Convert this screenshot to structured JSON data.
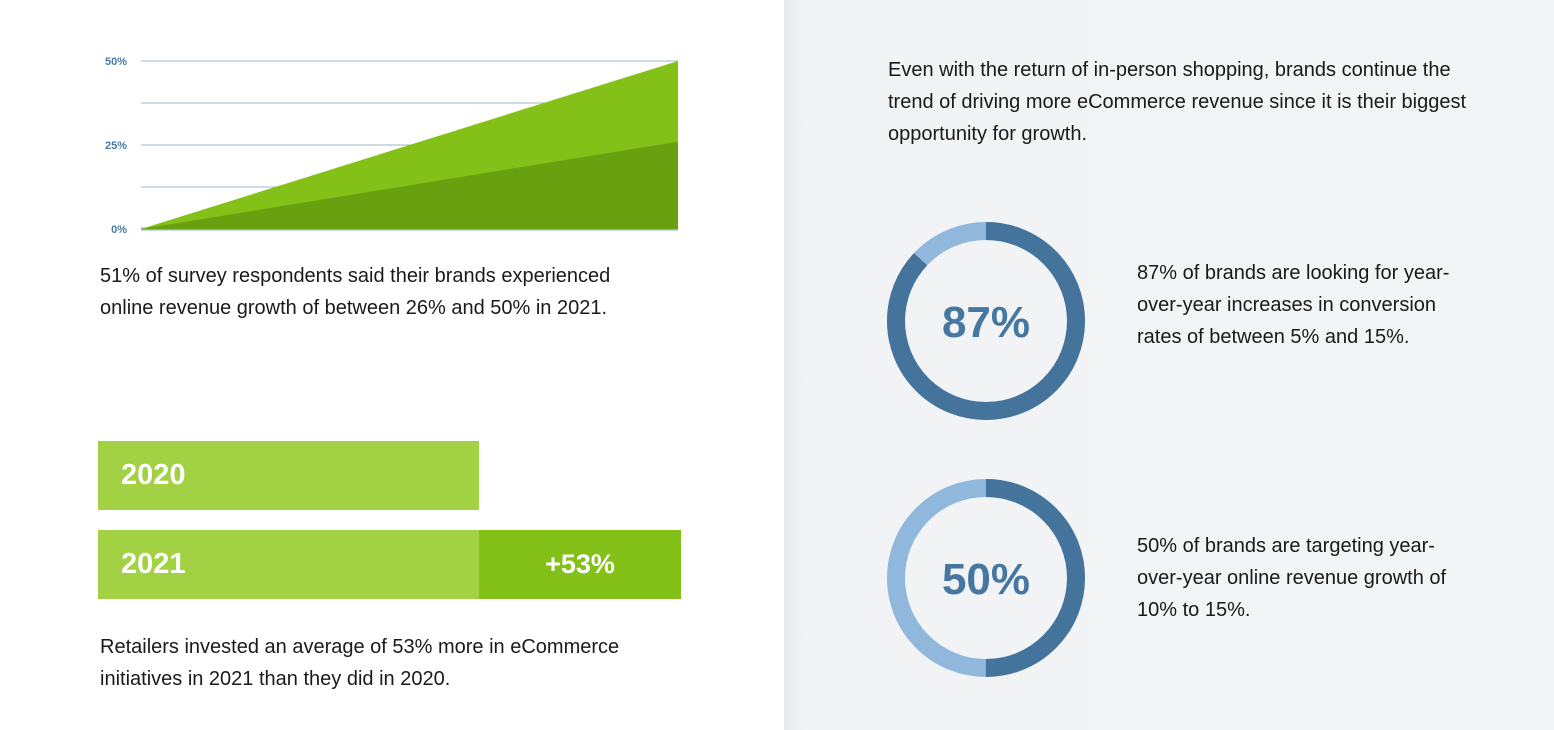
{
  "colors": {
    "green_light": "#a2d144",
    "green_mid": "#84c118",
    "green_dark": "#68a010",
    "blue_dark": "#44739c",
    "blue_light": "#8fb8dc",
    "tick_text": "#4a7aa8"
  },
  "chart_data": [
    {
      "type": "area",
      "title": "",
      "xlabel": "",
      "ylabel": "",
      "y_tick_labels": [
        "50%",
        "25%",
        "0%"
      ],
      "ylim": [
        0,
        50
      ],
      "grid": true,
      "x": [
        0,
        1
      ],
      "series": [
        {
          "values": [
            0,
            50
          ]
        },
        {
          "values": [
            0,
            26
          ]
        }
      ]
    },
    {
      "type": "bar",
      "categories": [
        "2020",
        "2021"
      ],
      "values": [
        100,
        153
      ],
      "annotations": [
        "+53%"
      ]
    },
    {
      "type": "pie",
      "center_label": "87%",
      "values": [
        87,
        13
      ]
    },
    {
      "type": "pie",
      "center_label": "50%",
      "values": [
        50,
        50
      ]
    }
  ],
  "text": {
    "survey": "51% of survey respondents said their brands experienced online revenue growth of between 26% and 50% in 2021.",
    "retail": "Retailers invested an average of 53% more in eCommerce initiatives in 2021 than they did in 2020.",
    "intro": "Even with the return of in-person shopping, brands continue the trend of driving more eCommerce revenue since it is their biggest opportunity for growth.",
    "stat87": "87% of brands are looking for year-over-year increases in conversion rates of between 5% and 15%.",
    "stat50": "50% of brands are targeting year-over-year online revenue growth of 10% to 15%."
  }
}
